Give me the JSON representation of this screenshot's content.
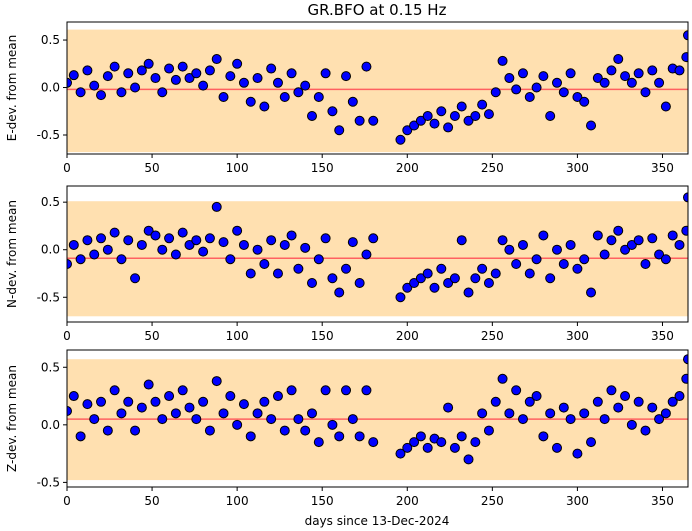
{
  "chart_data": {
    "type": "scatter",
    "title": "GR.BFO at 0.15 Hz",
    "xlabel": "days since 13-Dec-2024",
    "xlim": [
      0,
      365
    ],
    "xticks": [
      0,
      50,
      100,
      150,
      200,
      250,
      300,
      350
    ],
    "days": [
      0,
      4,
      8,
      12,
      16,
      20,
      24,
      28,
      32,
      36,
      40,
      44,
      48,
      52,
      56,
      60,
      64,
      68,
      72,
      76,
      80,
      84,
      88,
      92,
      96,
      100,
      104,
      108,
      112,
      116,
      120,
      124,
      128,
      132,
      136,
      140,
      144,
      148,
      152,
      156,
      160,
      164,
      168,
      172,
      176,
      180,
      196,
      200,
      204,
      208,
      212,
      216,
      220,
      224,
      228,
      232,
      236,
      240,
      244,
      248,
      252,
      256,
      260,
      264,
      268,
      272,
      276,
      280,
      284,
      288,
      292,
      296,
      300,
      304,
      308,
      312,
      316,
      320,
      324,
      328,
      332,
      336,
      340,
      344,
      348,
      352,
      356,
      360,
      364,
      365
    ],
    "colors": {
      "band": "#ffe0b0",
      "mean": "#ff6060",
      "marker": "#0000ff",
      "marker_edge": "#000000"
    },
    "panels": [
      {
        "ylabel": "E-dev. from mean",
        "ylim": [
          -0.7,
          0.69
        ],
        "yticks": [
          -0.5,
          0.0,
          0.5
        ],
        "band": [
          -0.68,
          0.61
        ],
        "mean": -0.02,
        "values": [
          0.05,
          0.13,
          -0.05,
          0.18,
          0.02,
          -0.08,
          0.12,
          0.22,
          -0.05,
          0.15,
          0.0,
          0.18,
          0.25,
          0.1,
          -0.05,
          0.2,
          0.08,
          0.22,
          0.1,
          0.15,
          0.02,
          0.18,
          0.3,
          -0.1,
          0.12,
          0.25,
          0.05,
          -0.15,
          0.1,
          -0.2,
          0.2,
          0.05,
          -0.1,
          0.15,
          -0.05,
          0.02,
          -0.3,
          -0.1,
          0.15,
          -0.25,
          -0.45,
          0.12,
          -0.15,
          -0.35,
          0.22,
          -0.35,
          -0.55,
          -0.45,
          -0.4,
          -0.35,
          -0.3,
          -0.38,
          -0.25,
          -0.42,
          -0.3,
          -0.2,
          -0.35,
          -0.3,
          -0.18,
          -0.28,
          -0.05,
          0.28,
          0.1,
          -0.02,
          0.15,
          -0.1,
          0.0,
          0.12,
          -0.3,
          0.05,
          -0.05,
          0.15,
          -0.1,
          -0.15,
          -0.4,
          0.1,
          0.05,
          0.18,
          0.3,
          0.12,
          0.05,
          0.15,
          -0.05,
          0.18,
          0.05,
          -0.2,
          0.2,
          0.18,
          0.32,
          0.55
        ]
      },
      {
        "ylabel": "N-dev. from mean",
        "ylim": [
          -0.76,
          0.67
        ],
        "yticks": [
          -0.5,
          0.0,
          0.5
        ],
        "band": [
          -0.7,
          0.51
        ],
        "mean": -0.09,
        "values": [
          -0.15,
          0.05,
          -0.1,
          0.1,
          -0.05,
          0.12,
          0.0,
          0.18,
          -0.1,
          0.1,
          -0.3,
          0.05,
          0.2,
          0.15,
          0.0,
          0.12,
          -0.05,
          0.18,
          0.05,
          0.1,
          -0.02,
          0.12,
          0.45,
          0.08,
          -0.1,
          0.2,
          0.05,
          -0.25,
          0.0,
          -0.15,
          0.1,
          -0.25,
          0.05,
          0.15,
          -0.2,
          0.02,
          -0.35,
          -0.1,
          0.12,
          -0.3,
          -0.45,
          -0.2,
          0.08,
          -0.35,
          -0.05,
          0.12,
          -0.5,
          -0.4,
          -0.35,
          -0.3,
          -0.25,
          -0.4,
          -0.2,
          -0.35,
          -0.3,
          0.1,
          -0.45,
          -0.3,
          -0.2,
          -0.35,
          -0.25,
          0.1,
          0.0,
          -0.15,
          0.05,
          -0.25,
          -0.1,
          0.15,
          -0.3,
          0.0,
          -0.15,
          0.05,
          -0.2,
          -0.1,
          -0.45,
          0.15,
          -0.05,
          0.1,
          0.2,
          0.0,
          0.05,
          0.1,
          -0.15,
          0.12,
          -0.05,
          -0.1,
          0.15,
          0.05,
          0.2,
          0.55
        ]
      },
      {
        "ylabel": "Z-dev. from mean",
        "ylim": [
          -0.54,
          0.65
        ],
        "yticks": [
          -0.5,
          0.0,
          0.5
        ],
        "band": [
          -0.48,
          0.57
        ],
        "mean": 0.05,
        "values": [
          0.12,
          0.25,
          -0.1,
          0.18,
          0.05,
          0.2,
          -0.05,
          0.3,
          0.1,
          0.2,
          -0.05,
          0.15,
          0.35,
          0.2,
          0.05,
          0.25,
          0.1,
          0.3,
          0.15,
          0.05,
          0.2,
          -0.05,
          0.38,
          0.1,
          0.25,
          0.0,
          0.18,
          -0.1,
          0.1,
          0.2,
          0.05,
          0.25,
          -0.05,
          0.3,
          0.05,
          -0.05,
          0.1,
          -0.15,
          0.3,
          0.0,
          -0.1,
          0.3,
          0.05,
          -0.1,
          0.3,
          -0.15,
          -0.25,
          -0.2,
          -0.15,
          -0.1,
          -0.2,
          -0.12,
          -0.15,
          0.15,
          -0.2,
          -0.1,
          -0.3,
          -0.15,
          0.1,
          -0.05,
          0.2,
          0.4,
          0.1,
          0.3,
          0.05,
          0.2,
          0.25,
          -0.1,
          0.1,
          -0.2,
          0.15,
          0.05,
          -0.25,
          0.1,
          -0.15,
          0.2,
          0.05,
          0.3,
          0.15,
          0.25,
          0.0,
          0.2,
          -0.05,
          0.15,
          0.05,
          0.1,
          0.2,
          0.25,
          0.4,
          0.57
        ]
      }
    ]
  }
}
